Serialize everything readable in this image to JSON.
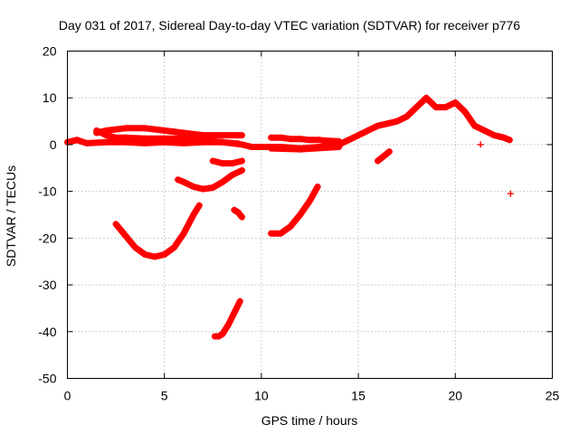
{
  "chart_data": {
    "type": "scatter",
    "title": "Day 031 of 2017, Sidereal Day-to-day VTEC variation (SDTVAR) for receiver p776",
    "xlabel": "GPS time / hours",
    "ylabel": "SDTVAR / TECUs",
    "xlim": [
      0,
      25
    ],
    "ylim": [
      -50,
      20
    ],
    "xticks": [
      0,
      5,
      10,
      15,
      20,
      25
    ],
    "xtick_labels": [
      "0",
      "5",
      "10",
      "15",
      "20",
      "25"
    ],
    "yticks": [
      -50,
      -40,
      -30,
      -20,
      -10,
      0,
      10,
      20
    ],
    "ytick_labels": [
      "-50",
      "-40",
      "-30",
      "-20",
      "-10",
      "0",
      "10",
      "20"
    ],
    "grid": true,
    "marker": "+",
    "color": "#ff0000",
    "series": [
      {
        "name": "main-track",
        "x": [
          0,
          0.5,
          1,
          2,
          3,
          4,
          5,
          6,
          7,
          8,
          9,
          9.5,
          10,
          11,
          12,
          13,
          14,
          14.5,
          15,
          15.5,
          16,
          16.5,
          17,
          17.5,
          18,
          18.5,
          19,
          19.5,
          20,
          20.5,
          21,
          21.5,
          22,
          22.5,
          22.8
        ],
        "y": [
          0.5,
          1,
          0.3,
          0.5,
          0.5,
          0.3,
          0.5,
          0.3,
          0.5,
          0.5,
          0,
          -0.5,
          -0.5,
          -0.5,
          -0.8,
          -0.5,
          0,
          1,
          2,
          3,
          4,
          4.5,
          5,
          6,
          8,
          10,
          8,
          8,
          9,
          7,
          4,
          3,
          2,
          1.5,
          1
        ]
      },
      {
        "name": "upper-band",
        "x": [
          1.5,
          2,
          3,
          4,
          5,
          6,
          7,
          8,
          9
        ],
        "y": [
          2.5,
          3,
          3.5,
          3.5,
          3,
          2.5,
          2,
          2,
          2
        ]
      },
      {
        "name": "crossing-band",
        "x": [
          1.5,
          2,
          2.5,
          3,
          4,
          5,
          6,
          7,
          8,
          8.8
        ],
        "y": [
          3,
          2,
          1.5,
          1.5,
          1.3,
          1.3,
          1.3,
          0.8,
          0.5,
          0.2
        ]
      },
      {
        "name": "mid-band",
        "x": [
          10.5,
          11,
          11.5,
          12,
          12.5,
          13,
          13.5,
          14
        ],
        "y": [
          1.5,
          1.5,
          1.2,
          1.2,
          1,
          1,
          0.8,
          0.7
        ]
      },
      {
        "name": "upper-mid-band",
        "x": [
          10.5,
          12,
          14
        ],
        "y": [
          -0.8,
          -1,
          -0.5
        ]
      },
      {
        "name": "short-arc",
        "x": [
          7.5,
          8,
          8.5,
          9
        ],
        "y": [
          -3.5,
          -4,
          -4,
          -3.5
        ]
      },
      {
        "name": "arc-minus-9",
        "x": [
          5.7,
          6,
          6.5,
          7,
          7.5,
          8,
          8.5,
          9
        ],
        "y": [
          -7.5,
          -8,
          -9,
          -9.5,
          -9.2,
          -8,
          -6.5,
          -5.5
        ]
      },
      {
        "name": "bowl",
        "x": [
          2.5,
          3,
          3.5,
          4,
          4.5,
          5,
          5.5,
          6,
          6.5,
          6.8
        ],
        "y": [
          -17,
          -19.5,
          -22,
          -23.5,
          -24,
          -23.5,
          -22,
          -19,
          -15,
          -13
        ]
      },
      {
        "name": "short-14",
        "x": [
          8.6,
          8.8,
          9
        ],
        "y": [
          -14,
          -14.5,
          -15.5
        ]
      },
      {
        "name": "rise-from-19",
        "x": [
          10.5,
          11,
          11.5,
          12,
          12.5,
          12.9
        ],
        "y": [
          -19,
          -19,
          -17.5,
          -15,
          -12,
          -9
        ]
      },
      {
        "name": "low-arc",
        "x": [
          7.6,
          7.8,
          8,
          8.3,
          8.6,
          8.9
        ],
        "y": [
          -41,
          -41,
          -40.5,
          -38.5,
          -36,
          -33.5
        ]
      },
      {
        "name": "dip-16",
        "x": [
          16,
          16.3,
          16.6
        ],
        "y": [
          -3.5,
          -2.5,
          -1.5
        ]
      },
      {
        "name": "isolated",
        "x": [
          21.3,
          22.85
        ],
        "y": [
          0,
          -10.5
        ]
      }
    ]
  }
}
